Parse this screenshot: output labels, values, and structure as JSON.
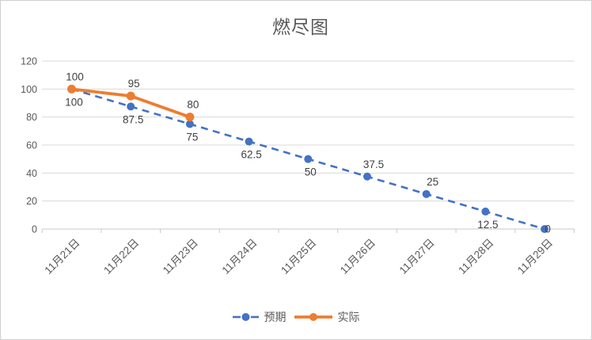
{
  "chart_data": {
    "type": "line",
    "title": "燃尽图",
    "categories": [
      "11月21日",
      "11月22日",
      "11月23日",
      "11月24日",
      "11月25日",
      "11月26日",
      "11月27日",
      "11月28日",
      "11月29日"
    ],
    "series": [
      {
        "name": "预期",
        "color": "#4472C4",
        "style": "dashed",
        "values": [
          100,
          87.5,
          75,
          62.5,
          50,
          37.5,
          25,
          12.5,
          0
        ],
        "labels": [
          "100",
          "87.5",
          "75",
          "62.5",
          "50",
          "37.5",
          "25",
          "12.5",
          "0"
        ],
        "label_positions": [
          "below",
          "below",
          "below",
          "below",
          "below",
          "above",
          "above",
          "below",
          "center"
        ]
      },
      {
        "name": "实际",
        "color": "#ED7D31",
        "style": "solid",
        "values": [
          100,
          95,
          80
        ],
        "labels": [
          "100",
          "95",
          "80"
        ],
        "label_positions": [
          "above",
          "above",
          "above"
        ]
      }
    ],
    "y_axis": {
      "min": 0,
      "max": 120,
      "step": 20,
      "tick_labels": [
        "0",
        "20",
        "40",
        "60",
        "80",
        "100",
        "120"
      ]
    },
    "grid": true,
    "legend_position": "bottom",
    "text_color": "#595959",
    "data_label_color": "#404040",
    "gridline_color": "#D9D9D9",
    "axis_line_color": "#C9C9C9"
  }
}
